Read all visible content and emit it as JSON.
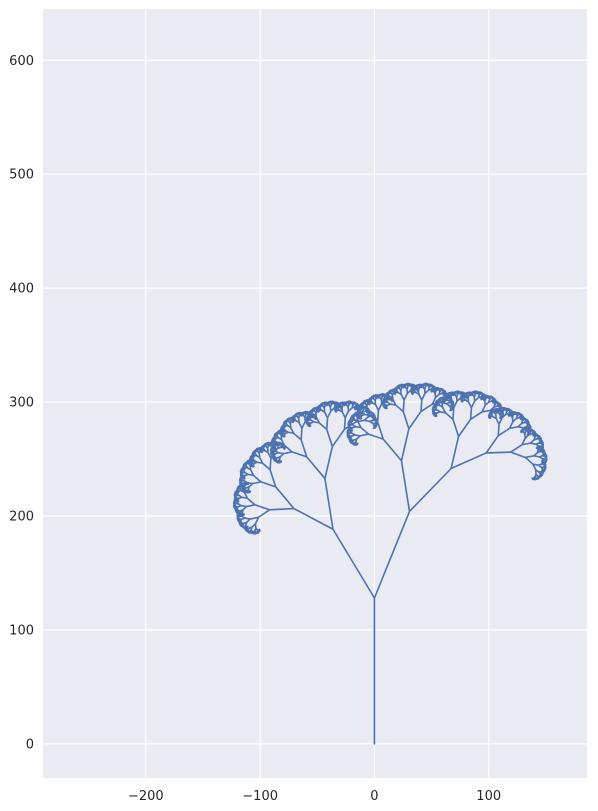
{
  "chart_data": {
    "type": "line",
    "title": "",
    "xlabel": "",
    "ylabel": "",
    "xlim": [
      -290,
      186
    ],
    "ylim": [
      -30,
      645
    ],
    "xticks": [
      -200,
      -100,
      0,
      100
    ],
    "xtick_labels": [
      "−200",
      "−100",
      "0",
      "100"
    ],
    "yticks": [
      0,
      100,
      200,
      300,
      400,
      500,
      600
    ],
    "ytick_labels": [
      "0",
      "100",
      "200",
      "300",
      "400",
      "500",
      "600"
    ],
    "grid": true,
    "legend": "none",
    "colors": {
      "background": "#eaeaf2",
      "grid": "#ffffff",
      "line": "#4c72b0"
    },
    "fractal": {
      "description_shown": false,
      "trunk": {
        "x": 0,
        "y0": 0,
        "y1": 128
      },
      "root_length": 128,
      "left_branch": {
        "angle_deg": 31,
        "scale": 0.55
      },
      "right_branch": {
        "angle_deg": -22,
        "scale": 0.64
      },
      "depth": 13,
      "stroke_width": 1.6
    }
  }
}
